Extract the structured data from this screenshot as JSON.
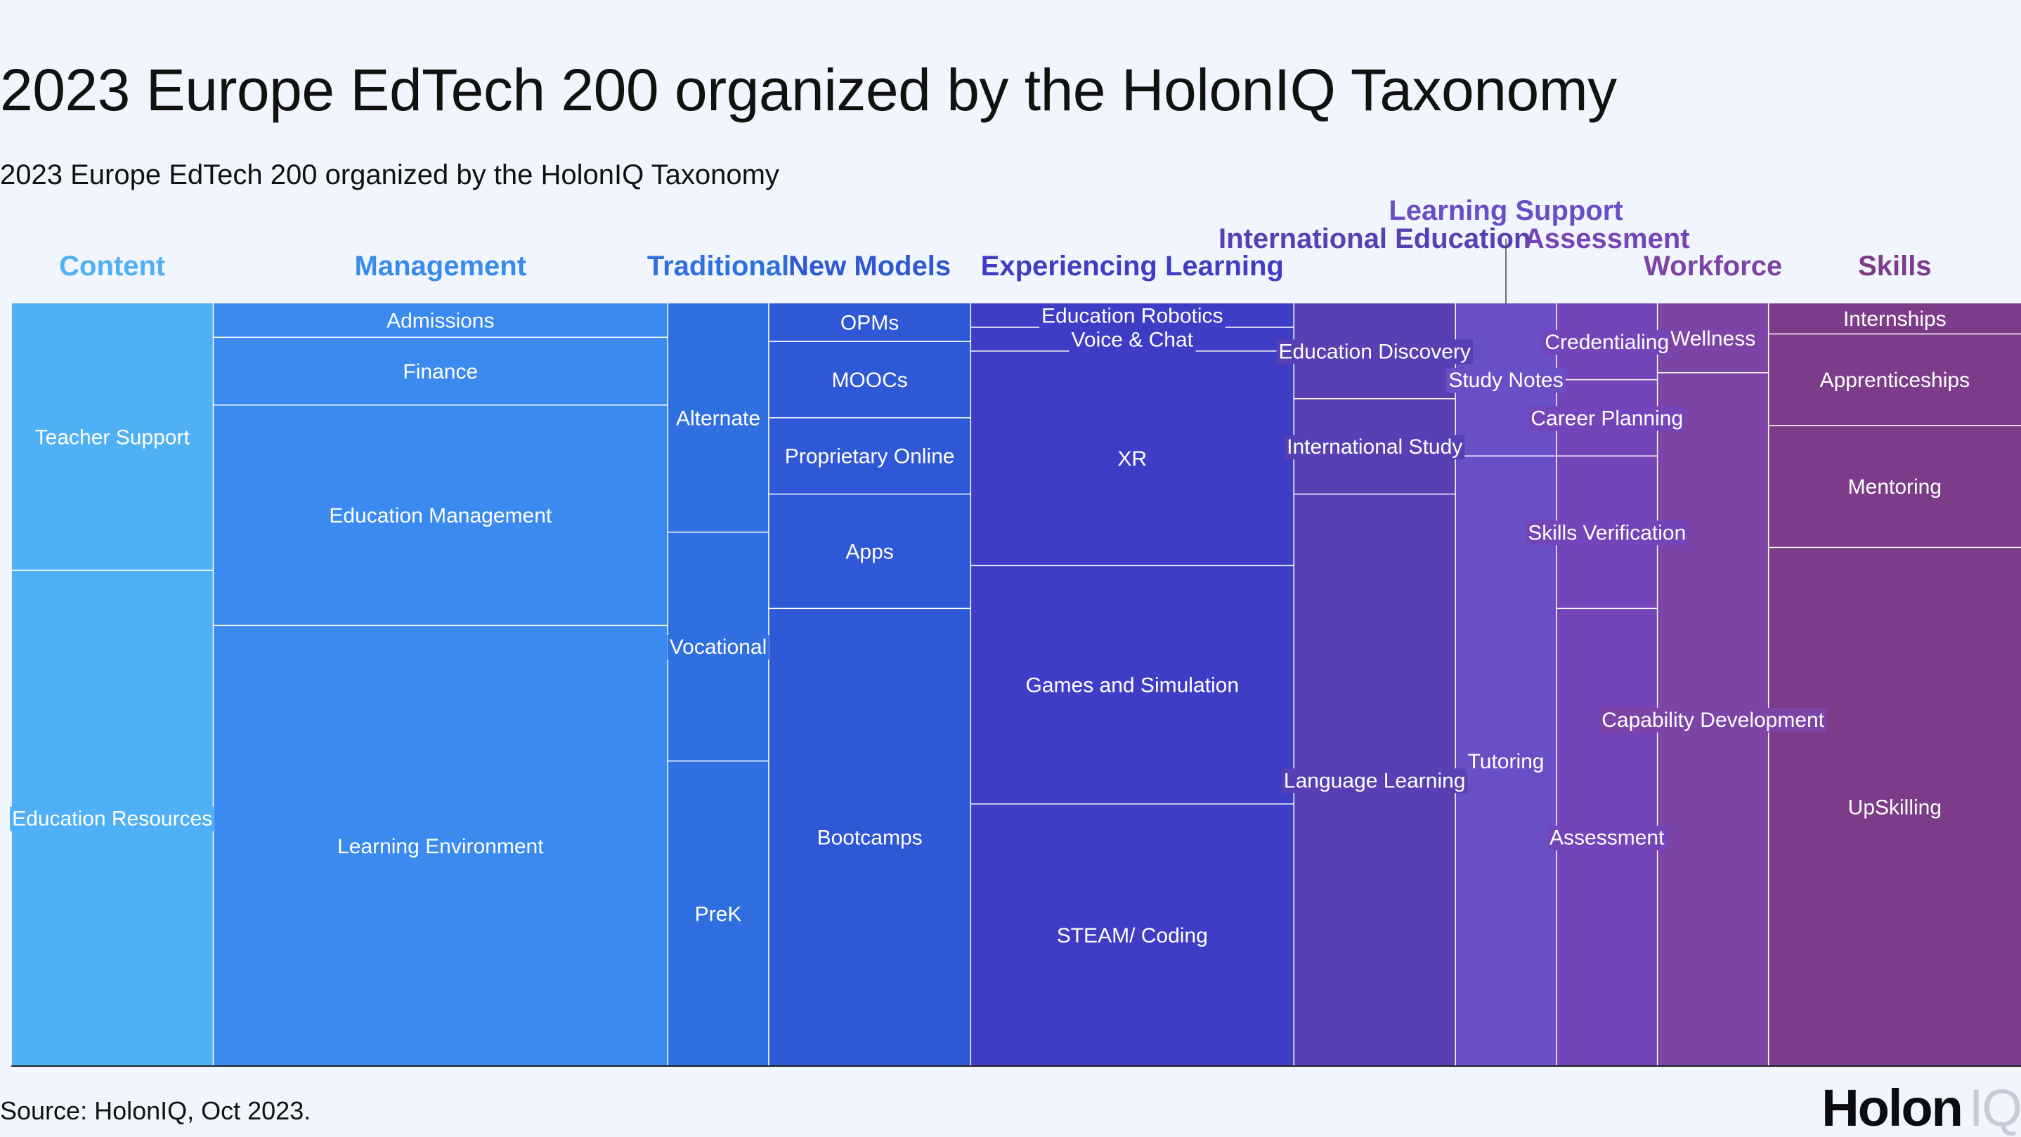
{
  "header": {
    "title": "2023 Europe EdTech 200 organized by the HolonIQ Taxonomy",
    "subtitle": "2023 Europe EdTech 200 organized by the HolonIQ Taxonomy"
  },
  "footer": {
    "source": "Source: HolonIQ, Oct 2023.",
    "logo_text": "Holon",
    "logo_suffix": "IQ"
  },
  "chart_data": {
    "type": "treemap",
    "unit": "companies",
    "groups": [
      {
        "name": "Content",
        "color": "#4fb0f6",
        "children": [
          {
            "name": "Teacher Support",
            "value": 7
          },
          {
            "name": "Education Resources",
            "value": 13
          }
        ]
      },
      {
        "name": "Management",
        "color": "#3a8af0",
        "children": [
          {
            "name": "Admissions",
            "value": 2
          },
          {
            "name": "Finance",
            "value": 4
          },
          {
            "name": "Education Management",
            "value": 13
          },
          {
            "name": "Learning Environment",
            "value": 26
          }
        ]
      },
      {
        "name": "Traditional",
        "color": "#2f6fe0",
        "children": [
          {
            "name": "Alternate",
            "value": 3
          },
          {
            "name": "Vocational",
            "value": 3
          },
          {
            "name": "PreK",
            "value": 4
          }
        ]
      },
      {
        "name": "New Models",
        "color": "#2f58d6",
        "children": [
          {
            "name": "OPMs",
            "value": 1
          },
          {
            "name": "MOOCs",
            "value": 2
          },
          {
            "name": "Proprietary Online",
            "value": 2
          },
          {
            "name": "Apps",
            "value": 3
          },
          {
            "name": "Bootcamps",
            "value": 12
          }
        ]
      },
      {
        "name": "Experiencing Learning",
        "color": "#3f3dc6",
        "children": [
          {
            "name": "Education Robotics",
            "value": 1
          },
          {
            "name": "Voice & Chat",
            "value": 1
          },
          {
            "name": "XR",
            "value": 9
          },
          {
            "name": "Games and Simulation",
            "value": 10
          },
          {
            "name": "STEAM/ Coding",
            "value": 11
          }
        ]
      },
      {
        "name": "International Education",
        "color": "#5640b4",
        "children": [
          {
            "name": "Education Discovery",
            "value": 2
          },
          {
            "name": "International Study",
            "value": 2
          },
          {
            "name": "Language Learning",
            "value": 12
          }
        ]
      },
      {
        "name": "Learning Support",
        "color": "#6a4ec6",
        "children": [
          {
            "name": "Study Notes",
            "value": 2
          },
          {
            "name": "Tutoring",
            "value": 8
          }
        ]
      },
      {
        "name": "Assessment",
        "color": "#7345b8",
        "children": [
          {
            "name": "Credentialing",
            "value": 1
          },
          {
            "name": "Career Planning",
            "value": 1
          },
          {
            "name": "Skills Verification",
            "value": 2
          },
          {
            "name": "Assessment",
            "value": 6
          }
        ]
      },
      {
        "name": "Workforce",
        "color": "#7c44a6",
        "children": [
          {
            "name": "Wellness",
            "value": 1
          },
          {
            "name": "Capability Development",
            "value": 10
          }
        ]
      },
      {
        "name": "Skills",
        "color": "#7d3c8a",
        "children": [
          {
            "name": "Internships",
            "value": 1
          },
          {
            "name": "Apprenticeships",
            "value": 3
          },
          {
            "name": "Mentoring",
            "value": 4
          },
          {
            "name": "UpSkilling",
            "value": 17
          }
        ]
      }
    ]
  }
}
